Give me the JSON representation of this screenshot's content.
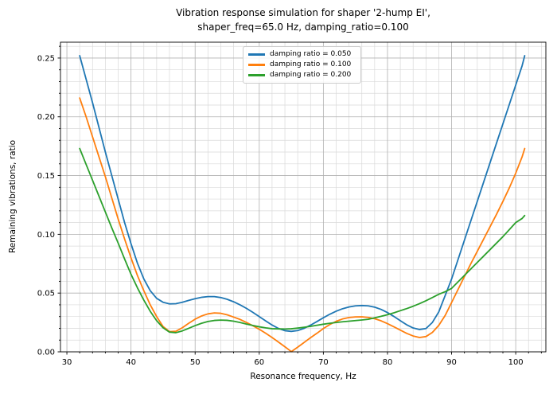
{
  "title": {
    "line1": "Vibration response simulation for shaper '2-hump EI',",
    "line2": "shaper_freq=65.0 Hz, damping_ratio=0.100"
  },
  "chart_data": {
    "type": "line",
    "title": "Vibration response simulation for shaper '2-hump EI', shaper_freq=65.0 Hz, damping_ratio=0.100",
    "xlabel": "Resonance frequency, Hz",
    "ylabel": "Remaining vibrations, ratio",
    "xlim": [
      29.0,
      104.7
    ],
    "ylim": [
      0,
      0.2635
    ],
    "grid": "both",
    "legend_position": "upper center",
    "x_ticks": {
      "values": [
        30,
        40,
        50,
        60,
        70,
        80,
        90,
        100
      ],
      "labels": [
        "30",
        "40",
        "50",
        "60",
        "70",
        "80",
        "90",
        "100"
      ]
    },
    "y_ticks": {
      "values": [
        0,
        0.05,
        0.1,
        0.15,
        0.2,
        0.25
      ],
      "labels": [
        "0.00",
        "0.05",
        "0.10",
        "0.15",
        "0.20",
        "0.25"
      ]
    },
    "x_minor_step": 2,
    "y_minor_step": 0.01,
    "x": [
      32,
      33,
      34,
      35,
      36,
      37,
      38,
      39,
      40,
      41,
      42,
      43,
      44,
      45,
      46,
      47,
      48,
      49,
      50,
      51,
      52,
      53,
      54,
      55,
      56,
      57,
      58,
      59,
      60,
      61,
      62,
      63,
      64,
      65,
      66,
      67,
      68,
      69,
      70,
      71,
      72,
      73,
      74,
      75,
      76,
      77,
      78,
      79,
      80,
      81,
      82,
      83,
      84,
      85,
      86,
      87,
      88,
      89,
      90,
      91,
      92,
      93,
      94,
      95,
      96,
      97,
      98,
      99,
      100,
      101,
      101.4
    ],
    "series": [
      {
        "name": "damping ratio = 0.050",
        "color": "#1f77b4",
        "values": [
          0.252,
          0.232,
          0.212,
          0.191,
          0.17,
          0.15,
          0.13,
          0.11,
          0.092,
          0.0755,
          0.062,
          0.052,
          0.0455,
          0.0422,
          0.0408,
          0.041,
          0.0422,
          0.0438,
          0.0452,
          0.0464,
          0.047,
          0.047,
          0.0462,
          0.0447,
          0.0426,
          0.04,
          0.037,
          0.0336,
          0.03,
          0.0263,
          0.0228,
          0.0199,
          0.018,
          0.0174,
          0.0181,
          0.02,
          0.0227,
          0.0258,
          0.029,
          0.032,
          0.0346,
          0.0367,
          0.0382,
          0.0391,
          0.0394,
          0.0391,
          0.038,
          0.0361,
          0.0334,
          0.0301,
          0.0265,
          0.023,
          0.0203,
          0.019,
          0.0198,
          0.025,
          0.034,
          0.048,
          0.062,
          0.0785,
          0.095,
          0.1115,
          0.128,
          0.1445,
          0.161,
          0.1775,
          0.194,
          0.2105,
          0.227,
          0.2435,
          0.252
        ]
      },
      {
        "name": "damping ratio = 0.100",
        "color": "#ff7f0e",
        "values": [
          0.216,
          0.2,
          0.183,
          0.166,
          0.149,
          0.131,
          0.113,
          0.096,
          0.08,
          0.065,
          0.052,
          0.04,
          0.03,
          0.0215,
          0.0172,
          0.0175,
          0.0205,
          0.0243,
          0.0278,
          0.0305,
          0.0323,
          0.0331,
          0.0328,
          0.0315,
          0.0296,
          0.0276,
          0.025,
          0.0222,
          0.0192,
          0.0158,
          0.0122,
          0.0083,
          0.0043,
          0.0002,
          0.004,
          0.008,
          0.012,
          0.0158,
          0.0198,
          0.0232,
          0.026,
          0.028,
          0.0292,
          0.0297,
          0.0298,
          0.0293,
          0.0282,
          0.0264,
          0.024,
          0.0213,
          0.0185,
          0.0157,
          0.0135,
          0.0122,
          0.013,
          0.0165,
          0.0225,
          0.031,
          0.042,
          0.053,
          0.064,
          0.075,
          0.0855,
          0.096,
          0.1065,
          0.117,
          0.128,
          0.1395,
          0.152,
          0.166,
          0.173
        ]
      },
      {
        "name": "damping ratio = 0.200",
        "color": "#2ca02c",
        "values": [
          0.173,
          0.1595,
          0.146,
          0.1325,
          0.119,
          0.1055,
          0.0925,
          0.079,
          0.066,
          0.0545,
          0.044,
          0.0345,
          0.0265,
          0.0205,
          0.0168,
          0.0163,
          0.0178,
          0.02,
          0.0223,
          0.0243,
          0.0258,
          0.0267,
          0.027,
          0.0268,
          0.0261,
          0.025,
          0.0236,
          0.0224,
          0.0213,
          0.0204,
          0.0197,
          0.0195,
          0.0194,
          0.0196,
          0.0202,
          0.0209,
          0.0217,
          0.0226,
          0.0235,
          0.0243,
          0.025,
          0.0256,
          0.0261,
          0.0266,
          0.0271,
          0.0277,
          0.029,
          0.0302,
          0.0316,
          0.0332,
          0.035,
          0.0368,
          0.0388,
          0.041,
          0.0435,
          0.0462,
          0.049,
          0.0512,
          0.054,
          0.0595,
          0.065,
          0.0705,
          0.076,
          0.0815,
          0.087,
          0.0925,
          0.098,
          0.104,
          0.11,
          0.1135,
          0.116
        ]
      }
    ]
  },
  "style": {
    "grid_major_color": "#b0b0b0",
    "grid_minor_color": "#d9d9d9",
    "spine_color": "#000000",
    "tick_color": "#000000",
    "background": "#ffffff"
  }
}
